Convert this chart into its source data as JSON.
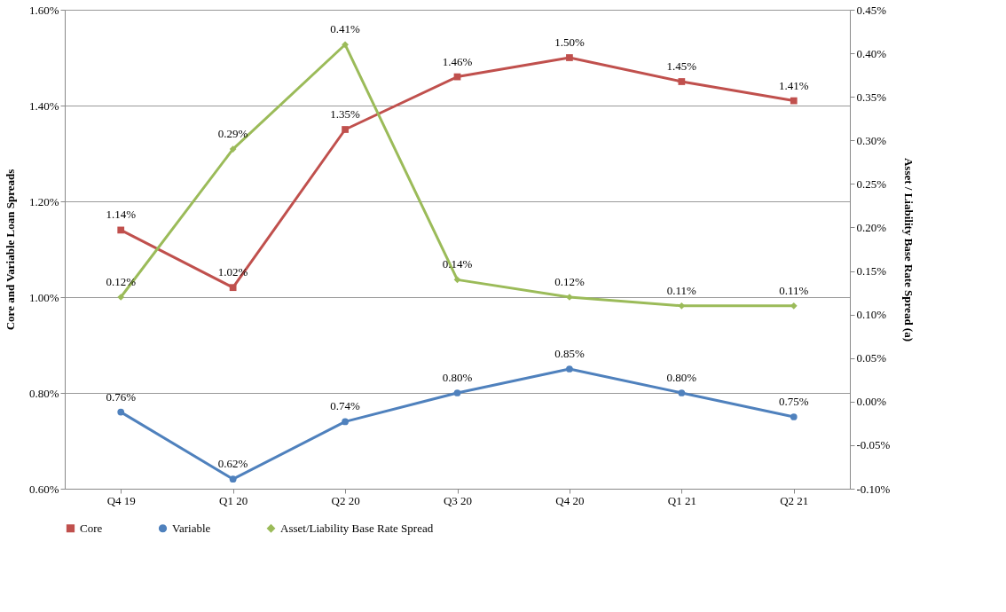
{
  "chart_data": {
    "type": "line",
    "categories": [
      "Q4 19",
      "Q1 20",
      "Q2 20",
      "Q3 20",
      "Q4 20",
      "Q1 21",
      "Q2 21"
    ],
    "ylabel": "Core and Variable Loan Spreads",
    "y2label": "Asset / Liability Base Rate Spread (a)",
    "ylim": [
      0.6,
      1.6
    ],
    "yticks": [
      {
        "value": 0.6,
        "label": "0.60%"
      },
      {
        "value": 0.8,
        "label": "0.80%"
      },
      {
        "value": 1.0,
        "label": "1.00%"
      },
      {
        "value": 1.2,
        "label": "1.20%"
      },
      {
        "value": 1.4,
        "label": "1.40%"
      },
      {
        "value": 1.6,
        "label": "1.60%"
      }
    ],
    "y2lim": [
      -0.1,
      0.45
    ],
    "y2ticks": [
      {
        "value": -0.1,
        "label": "-0.10%"
      },
      {
        "value": -0.05,
        "label": "-0.05%"
      },
      {
        "value": 0,
        "label": "0.00%"
      },
      {
        "value": 0.05,
        "label": "0.05%"
      },
      {
        "value": 0.1,
        "label": "0.10%"
      },
      {
        "value": 0.15,
        "label": "0.15%"
      },
      {
        "value": 0.2,
        "label": "0.20%"
      },
      {
        "value": 0.25,
        "label": "0.25%"
      },
      {
        "value": 0.3,
        "label": "0.30%"
      },
      {
        "value": 0.35,
        "label": "0.35%"
      },
      {
        "value": 0.4,
        "label": "0.40%"
      },
      {
        "value": 0.45,
        "label": "0.45%"
      }
    ],
    "grid": "y",
    "legend": "bottom",
    "line_style": "solid",
    "series": [
      {
        "name": "Core",
        "color": "#c0504d",
        "marker": "square",
        "values": [
          1.14,
          1.02,
          1.35,
          1.46,
          1.5,
          1.45,
          1.41
        ],
        "value_labels": [
          "1.14%",
          "1.02%",
          "1.35%",
          "1.46%",
          "1.50%",
          "1.45%",
          "1.41%"
        ]
      },
      {
        "name": "Variable",
        "color": "#4f81bd",
        "marker": "circle",
        "values": [
          0.76,
          0.62,
          0.74,
          0.8,
          0.85,
          0.8,
          0.75
        ],
        "value_labels": [
          "0.76%",
          "0.62%",
          "0.74%",
          "0.80%",
          "0.85%",
          "0.80%",
          "0.75%"
        ]
      },
      {
        "name": "Asset/Liability Base Rate Spread",
        "color": "#9bbb59",
        "marker": "diamond",
        "axis": "y2",
        "values": [
          0.12,
          0.29,
          0.41,
          0.14,
          0.12,
          0.11,
          0.11
        ],
        "value_labels": [
          "0.12%",
          "0.29%",
          "0.41%",
          "0.14%",
          "0.12%",
          "0.11%",
          "0.11%"
        ]
      }
    ]
  }
}
